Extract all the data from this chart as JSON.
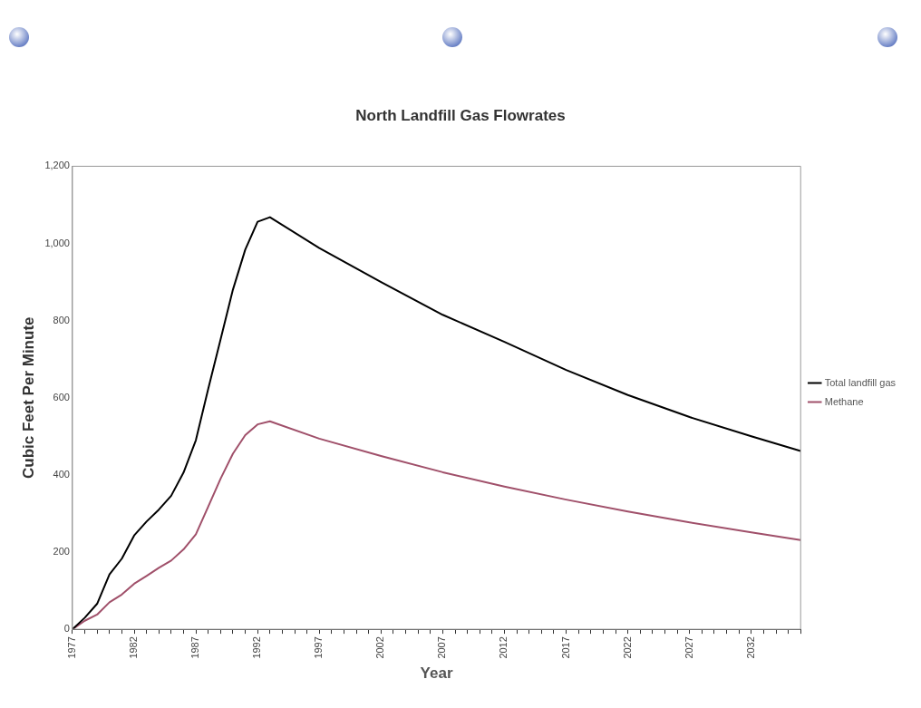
{
  "chart_data": {
    "type": "line",
    "title": "North Landfill Gas Flowrates",
    "xlabel": "Year",
    "ylabel": "Cubic Feet Per Minute",
    "x": [
      1977,
      1978,
      1979,
      1980,
      1981,
      1982,
      1983,
      1984,
      1985,
      1986,
      1987,
      1988,
      1989,
      1990,
      1991,
      1992,
      1993,
      1997,
      2002,
      2007,
      2012,
      2017,
      2022,
      2027,
      2032,
      2036
    ],
    "series": [
      {
        "name": "Total landfill gas",
        "color": "#000000",
        "values": [
          0,
          30,
          66,
          142,
          183,
          243,
          279,
          310,
          346,
          406,
          490,
          623,
          751,
          880,
          984,
          1056,
          1068,
          988,
          900,
          815,
          745,
          672,
          607,
          550,
          500,
          462
        ]
      },
      {
        "name": "Methane",
        "color": "#a0506a",
        "values": [
          0,
          22,
          38,
          70,
          90,
          118,
          138,
          159,
          178,
          207,
          246,
          318,
          390,
          455,
          503,
          531,
          539,
          494,
          449,
          407,
          370,
          336,
          305,
          277,
          251,
          231
        ]
      }
    ],
    "xlim": [
      1977,
      2036
    ],
    "xticks": [
      1977,
      {
        "value": 1978,
        "label": null
      },
      {
        "value": 1979,
        "label": null
      },
      {
        "value": 1980,
        "label": null
      },
      {
        "value": 1981,
        "label": null
      },
      1982,
      {
        "value": 1983,
        "label": null
      },
      {
        "value": 1984,
        "label": null
      },
      {
        "value": 1985,
        "label": null
      },
      {
        "value": 1986,
        "label": null
      },
      1987,
      {
        "value": 1988,
        "label": null
      },
      {
        "value": 1989,
        "label": null
      },
      {
        "value": 1990,
        "label": null
      },
      {
        "value": 1991,
        "label": null
      },
      1992,
      {
        "value": 1993,
        "label": null
      },
      {
        "value": 1994,
        "label": null
      },
      {
        "value": 1995,
        "label": null
      },
      {
        "value": 1996,
        "label": null
      },
      1997,
      {
        "value": 1998,
        "label": null
      },
      {
        "value": 1999,
        "label": null
      },
      {
        "value": 2000,
        "label": null
      },
      {
        "value": 2001,
        "label": null
      },
      2002,
      {
        "value": 2003,
        "label": null
      },
      {
        "value": 2004,
        "label": null
      },
      {
        "value": 2005,
        "label": null
      },
      {
        "value": 2006,
        "label": null
      },
      2007,
      {
        "value": 2008,
        "label": null
      },
      {
        "value": 2009,
        "label": null
      },
      {
        "value": 2010,
        "label": null
      },
      {
        "value": 2011,
        "label": null
      },
      2012,
      {
        "value": 2013,
        "label": null
      },
      {
        "value": 2014,
        "label": null
      },
      {
        "value": 2015,
        "label": null
      },
      {
        "value": 2016,
        "label": null
      },
      2017,
      {
        "value": 2018,
        "label": null
      },
      {
        "value": 2019,
        "label": null
      },
      {
        "value": 2020,
        "label": null
      },
      {
        "value": 2021,
        "label": null
      },
      2022,
      {
        "value": 2023,
        "label": null
      },
      {
        "value": 2024,
        "label": null
      },
      {
        "value": 2025,
        "label": null
      },
      {
        "value": 2026,
        "label": null
      },
      2027,
      {
        "value": 2028,
        "label": null
      },
      {
        "value": 2029,
        "label": null
      },
      {
        "value": 2030,
        "label": null
      },
      {
        "value": 2031,
        "label": null
      },
      2032,
      {
        "value": 2033,
        "label": null
      },
      {
        "value": 2034,
        "label": null
      },
      {
        "value": 2035,
        "label": null
      },
      {
        "value": 2036,
        "label": null
      }
    ],
    "ylim": [
      0,
      1200
    ],
    "yticks": [
      0,
      200,
      400,
      600,
      800,
      {
        "value": 1000,
        "label": "1,000"
      },
      {
        "value": 1200,
        "label": "1,200"
      }
    ],
    "grid": false,
    "legend": "right",
    "marker": "none",
    "line_style": "solid"
  }
}
